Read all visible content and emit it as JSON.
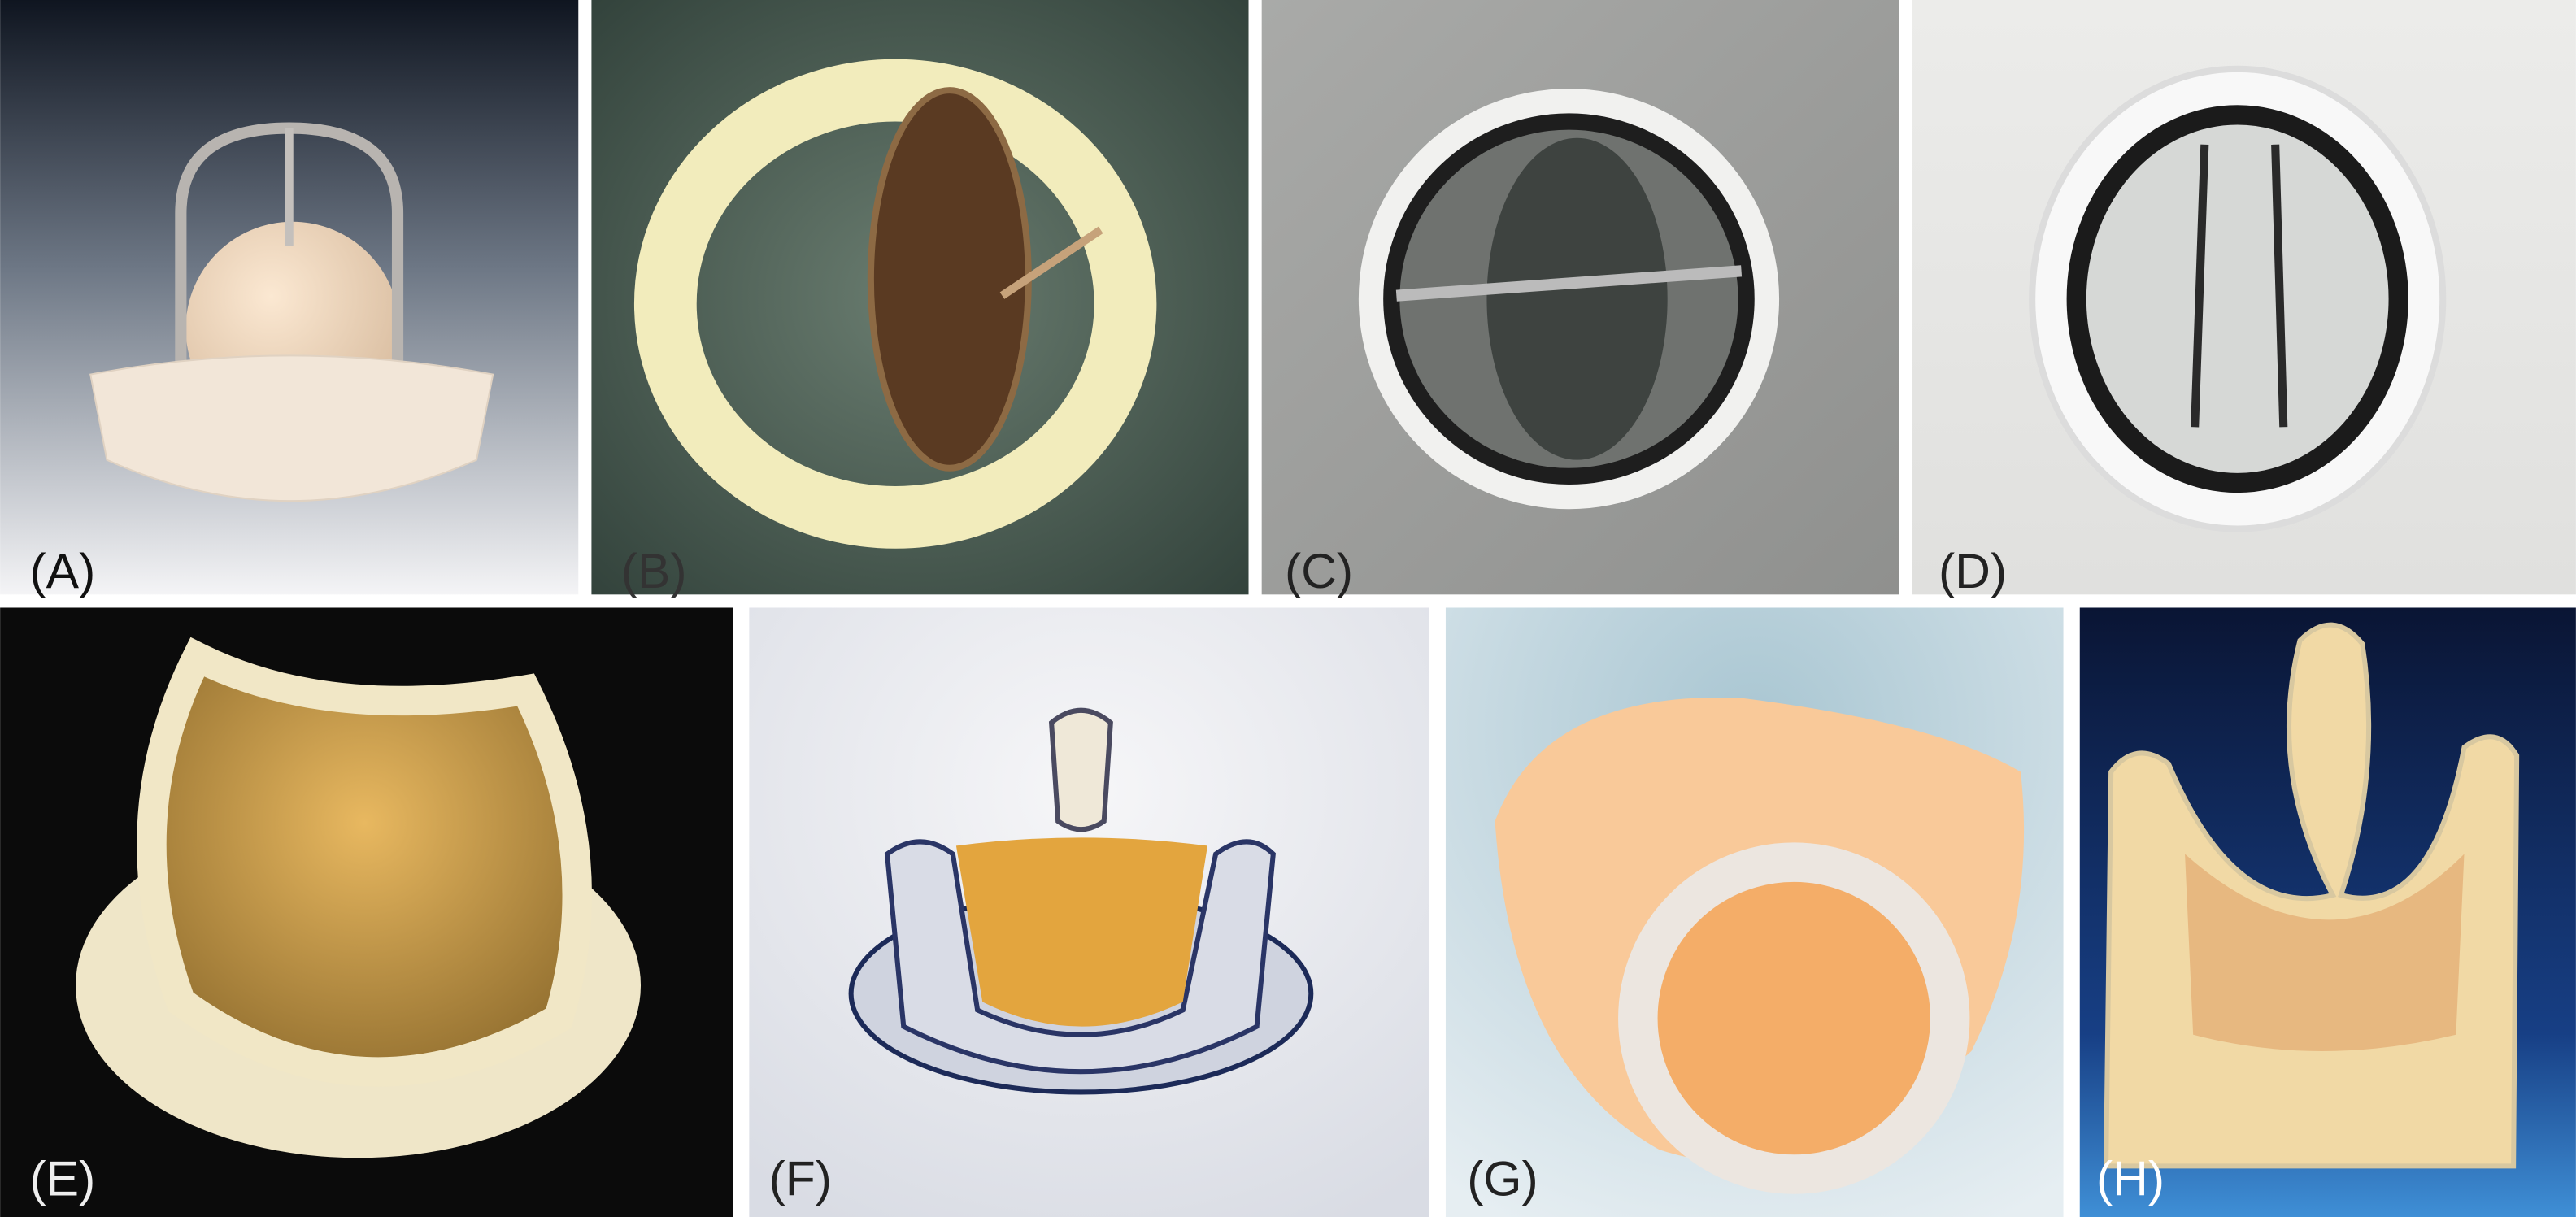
{
  "panels": [
    {
      "label": "(A)"
    },
    {
      "label": "(B)"
    },
    {
      "label": "(C)"
    },
    {
      "label": "(D)"
    },
    {
      "label": "(E)"
    },
    {
      "label": "(F)"
    },
    {
      "label": "(G)"
    },
    {
      "label": "(H)"
    }
  ]
}
